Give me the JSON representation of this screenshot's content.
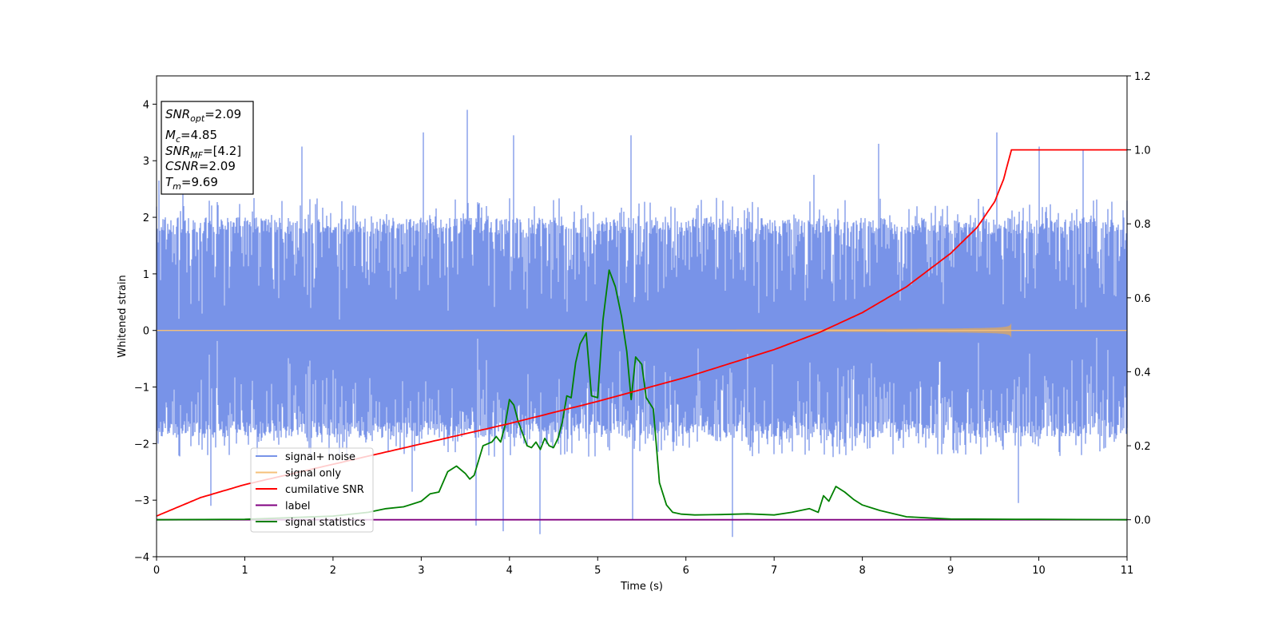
{
  "chart_data": {
    "type": "line",
    "xlabel": "Time (s)",
    "ylabel": "Whitened strain",
    "xlim": [
      0,
      11
    ],
    "ylim": [
      -4,
      4.5
    ],
    "ylim_right": [
      -0.1,
      1.2
    ],
    "x_ticks": [
      0,
      1,
      2,
      3,
      4,
      5,
      6,
      7,
      8,
      9,
      10,
      11
    ],
    "y_ticks": [
      -4,
      -3,
      -2,
      -1,
      0,
      1,
      2,
      3,
      4
    ],
    "y_ticks_right": [
      0.0,
      0.2,
      0.4,
      0.6,
      0.8,
      1.0,
      1.2
    ],
    "grid": false,
    "legend_position": "lower-left",
    "series": [
      {
        "name": "signal+ noise",
        "axis": "left",
        "color": "#7893e8",
        "kind": "noise",
        "band_mean": 0.0,
        "band_sd": 1.0,
        "band_span": [
          -1.9,
          2.0
        ],
        "spikes": [
          {
            "x": 0.03,
            "y": 2.65
          },
          {
            "x": 0.3,
            "y": 3.0
          },
          {
            "x": 0.62,
            "y": -3.1
          },
          {
            "x": 1.65,
            "y": 3.25
          },
          {
            "x": 2.9,
            "y": -2.85
          },
          {
            "x": 3.02,
            "y": 3.5
          },
          {
            "x": 3.52,
            "y": 3.9
          },
          {
            "x": 3.62,
            "y": -3.45
          },
          {
            "x": 3.93,
            "y": -3.55
          },
          {
            "x": 4.05,
            "y": 3.45
          },
          {
            "x": 4.35,
            "y": -3.6
          },
          {
            "x": 5.38,
            "y": 3.45
          },
          {
            "x": 5.4,
            "y": -3.35
          },
          {
            "x": 6.53,
            "y": -3.65
          },
          {
            "x": 7.45,
            "y": 2.75
          },
          {
            "x": 8.18,
            "y": 3.3
          },
          {
            "x": 9.52,
            "y": 3.5
          },
          {
            "x": 9.77,
            "y": -3.05
          },
          {
            "x": 10.0,
            "y": 3.25
          },
          {
            "x": 10.5,
            "y": 3.2
          }
        ]
      },
      {
        "name": "signal only",
        "axis": "left",
        "color": "#f5c07a",
        "kind": "chirp",
        "end_x": 9.69,
        "peak_amplitude": 0.2
      },
      {
        "name": "cumilative SNR",
        "axis": "right",
        "color": "#ff0000",
        "x": [
          0,
          0.5,
          1,
          2,
          3,
          4,
          5,
          6,
          7,
          7.5,
          8,
          8.5,
          9,
          9.3,
          9.5,
          9.6,
          9.69,
          11
        ],
        "values": [
          0.01,
          0.06,
          0.095,
          0.15,
          0.205,
          0.26,
          0.32,
          0.385,
          0.46,
          0.505,
          0.56,
          0.63,
          0.72,
          0.79,
          0.86,
          0.92,
          1.0,
          1.0
        ]
      },
      {
        "name": "label",
        "axis": "right",
        "color": "#800080",
        "x": [
          0,
          11
        ],
        "values": [
          0.0,
          0.0
        ]
      },
      {
        "name": "signal statistics",
        "axis": "right",
        "color": "#008000",
        "x": [
          0,
          1,
          2,
          2.4,
          2.6,
          2.8,
          3.0,
          3.1,
          3.2,
          3.3,
          3.4,
          3.5,
          3.55,
          3.6,
          3.7,
          3.8,
          3.85,
          3.9,
          3.95,
          4.0,
          4.05,
          4.1,
          4.2,
          4.25,
          4.3,
          4.35,
          4.4,
          4.45,
          4.5,
          4.55,
          4.6,
          4.65,
          4.7,
          4.75,
          4.8,
          4.87,
          4.93,
          5.0,
          5.06,
          5.13,
          5.2,
          5.27,
          5.33,
          5.38,
          5.43,
          5.5,
          5.55,
          5.63,
          5.7,
          5.78,
          5.85,
          5.95,
          6.1,
          6.4,
          6.7,
          7.0,
          7.2,
          7.4,
          7.5,
          7.56,
          7.62,
          7.7,
          7.8,
          7.9,
          8.0,
          8.2,
          8.5,
          9.0,
          10.0,
          11.0
        ],
        "values": [
          0.0,
          0.001,
          0.01,
          0.02,
          0.03,
          0.035,
          0.05,
          0.07,
          0.075,
          0.13,
          0.145,
          0.125,
          0.11,
          0.12,
          0.2,
          0.21,
          0.225,
          0.21,
          0.255,
          0.325,
          0.31,
          0.265,
          0.2,
          0.195,
          0.21,
          0.19,
          0.22,
          0.2,
          0.195,
          0.22,
          0.265,
          0.335,
          0.33,
          0.425,
          0.475,
          0.505,
          0.335,
          0.33,
          0.54,
          0.675,
          0.63,
          0.55,
          0.455,
          0.325,
          0.44,
          0.42,
          0.33,
          0.3,
          0.1,
          0.04,
          0.02,
          0.015,
          0.013,
          0.014,
          0.016,
          0.013,
          0.02,
          0.03,
          0.02,
          0.065,
          0.05,
          0.09,
          0.075,
          0.055,
          0.04,
          0.025,
          0.008,
          0.002,
          0.001,
          0.0
        ]
      }
    ],
    "annotation": [
      {
        "base": "SNR",
        "sub": "opt",
        "value": "=2.09"
      },
      {
        "base": "M",
        "sub": "c",
        "value": "=4.85"
      },
      {
        "base": "SNR",
        "sub": "MF",
        "value": "=[4.2]"
      },
      {
        "base": "CSNR",
        "sub": "",
        "value": "=2.09"
      },
      {
        "base": "T",
        "sub": "m",
        "value": "=9.69"
      }
    ]
  }
}
